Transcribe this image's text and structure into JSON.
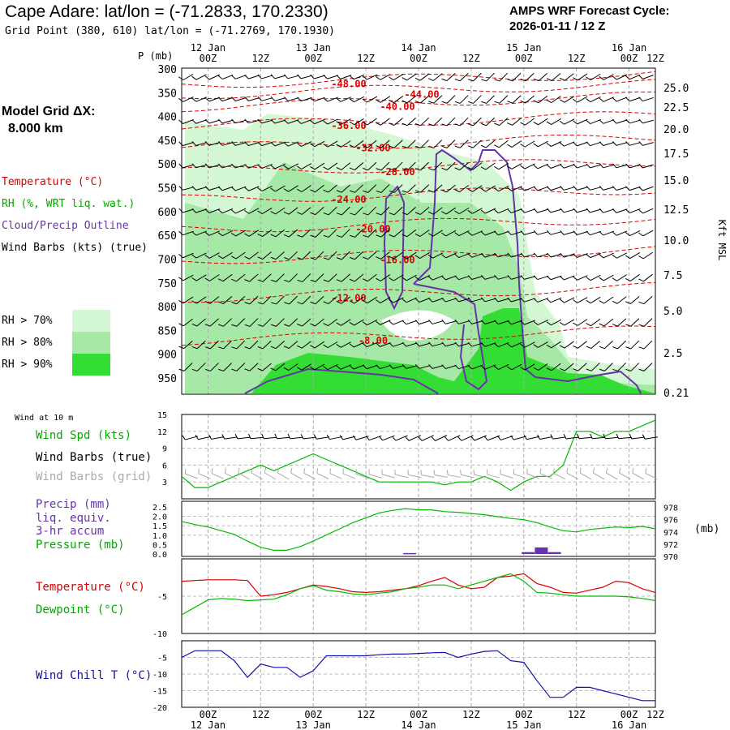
{
  "header": {
    "title": "Cape Adare:  lat/lon = (-71.2833, 170.2330)",
    "grid_point": "Grid Point (380, 610) lat/lon = (-71.2769, 170.1930)",
    "cycle_line1": "AMPS WRF Forecast Cycle:",
    "cycle_line2": "2026-01-11 / 12  Z",
    "model_grid_label": "Model Grid ΔX:",
    "model_grid_value": "8.000 km"
  },
  "legend": {
    "temperature": "Temperature (°C)",
    "rh": "RH (%, WRT liq. wat.)",
    "cloud": "Cloud/Precip Outline",
    "wind": "Wind Barbs (kts) (true)",
    "rh70": "RH > 70%",
    "rh80": "RH > 80%",
    "rh90": "RH > 90%",
    "p_mb": "P (mb)",
    "kft": "Kft MSL",
    "wind10m": "Wind at 10 m",
    "wind_spd": "Wind Spd (kts)",
    "wind_true": "Wind Barbs (true)",
    "wind_grid": "Wind Barbs (grid)",
    "precip1": "Precip (mm)",
    "precip2": "liq. equiv.",
    "precip3": "3-hr accum",
    "pressure": "Pressure (mb)",
    "pressure_unit": "(mb)",
    "temp": "Temperature (°C)",
    "dewpoint": "Dewpoint (°C)",
    "windchill": "Wind Chill T (°C)"
  },
  "colors": {
    "temp": "#dd0000",
    "rh": "#00bb00",
    "cloud": "#6633aa",
    "windchill": "#1111aa",
    "rh70": "#d4f7d4",
    "rh80": "#a6e8a6",
    "rh90": "#33dd33",
    "gridwind": "#aaaaaa"
  },
  "chart_data": {
    "type": "line",
    "x_hours": [
      0,
      3,
      6,
      9,
      12,
      15,
      18,
      21,
      24,
      27,
      30,
      33,
      36,
      39,
      42,
      45,
      48,
      51,
      54,
      57,
      60,
      63,
      66,
      69,
      72,
      75,
      78,
      81,
      84,
      87,
      90,
      93,
      96,
      99,
      102,
      105,
      108
    ],
    "time_ticks_top": [
      "00Z",
      "12Z",
      "00Z",
      "12Z",
      "00Z",
      "12Z",
      "00Z",
      "12Z",
      "00Z",
      "12Z"
    ],
    "date_labels": [
      "12 Jan",
      "13 Jan",
      "14 Jan",
      "15 Jan",
      "16 Jan"
    ],
    "cross_section": {
      "pressure_levels": [
        "300",
        "350",
        "400",
        "450",
        "500",
        "550",
        "600",
        "650",
        "700",
        "750",
        "800",
        "850",
        "900",
        "950"
      ],
      "height_kft": [
        "25.0",
        "22.5",
        "20.0",
        "17.5",
        "15.0",
        "12.5",
        "10.0",
        "7.5",
        "5.0",
        "2.5",
        "0.21"
      ],
      "temperature_contours": [
        {
          "label": "-48.00",
          "p": 330
        },
        {
          "label": "-44.00",
          "p": 352
        },
        {
          "label": "-40.00",
          "p": 378
        },
        {
          "label": "-36.00",
          "p": 418
        },
        {
          "label": "-32.00",
          "p": 465
        },
        {
          "label": "-28.00",
          "p": 515
        },
        {
          "label": "-24.00",
          "p": 573
        },
        {
          "label": "-20.00",
          "p": 635
        },
        {
          "label": "-16.00",
          "p": 700
        },
        {
          "label": "-12.00",
          "p": 780
        },
        {
          "label": "-8.00",
          "p": 870
        }
      ]
    },
    "wind_speed_10m_kts": [
      4,
      2,
      2,
      3,
      4,
      5,
      6,
      5,
      6,
      7,
      8,
      7,
      6,
      5,
      4,
      3,
      3,
      3,
      3,
      3,
      2.5,
      3,
      3,
      4,
      3,
      1.5,
      3,
      4,
      4,
      6,
      12,
      12,
      11,
      12,
      12,
      13,
      14
    ],
    "wind_speed_ylim": [
      0,
      15
    ],
    "wind_speed_ticks": [
      "15",
      "12",
      "9",
      "6",
      "3"
    ],
    "precip_ticks": [
      "2.5",
      "2.0",
      "1.5",
      "1.0",
      "0.5",
      "0.0"
    ],
    "pressure_ticks": [
      "978",
      "976",
      "974",
      "972",
      "970"
    ],
    "pressure_mb": [
      975.7,
      975.2,
      974.8,
      974.2,
      973.6,
      972.5,
      971.5,
      971.0,
      971.0,
      971.6,
      972.5,
      973.5,
      974.5,
      975.5,
      976.3,
      977.1,
      977.5,
      977.8,
      977.6,
      977.6,
      977.3,
      977.2,
      977.0,
      976.8,
      976.5,
      976.2,
      976.0,
      975.5,
      974.8,
      974.2,
      974.0,
      974.4,
      974.6,
      974.8,
      974.7,
      974.9,
      974.5
    ],
    "precip_mm": [
      {
        "hour": 52,
        "value": 0.05
      },
      {
        "hour": 79,
        "value": 0.1
      },
      {
        "hour": 82,
        "value": 0.35
      },
      {
        "hour": 85,
        "value": 0.1
      }
    ],
    "temperature_c": [
      -3,
      -2.9,
      -2.8,
      -2.8,
      -2.8,
      -2.9,
      -5,
      -4.8,
      -4.5,
      -4,
      -3.5,
      -3.7,
      -4,
      -4.4,
      -4.5,
      -4.4,
      -4.2,
      -4,
      -3.6,
      -3,
      -2.5,
      -3.5,
      -4,
      -3.8,
      -2.5,
      -2.3,
      -2,
      -3.3,
      -3.8,
      -4.5,
      -4.6,
      -4.2,
      -3.8,
      -3,
      -3.2,
      -4,
      -4.5
    ],
    "dewpoint_c": [
      -7.5,
      -6.5,
      -5.5,
      -5.3,
      -5.4,
      -5.6,
      -5.5,
      -5.4,
      -4.8,
      -4,
      -3.6,
      -4.2,
      -4.4,
      -4.7,
      -4.8,
      -4.6,
      -4.4,
      -4,
      -3.8,
      -3.5,
      -3.5,
      -4,
      -3.5,
      -3,
      -2.5,
      -2,
      -3,
      -4.5,
      -4.6,
      -4.8,
      -5,
      -5,
      -5,
      -5,
      -5.1,
      -5.3,
      -5.6
    ],
    "temp_ylim": [
      -10,
      0
    ],
    "temp_ticks": [
      "-5",
      "-10"
    ],
    "wind_chill_c": [
      -5,
      -3,
      -3,
      -3,
      -6,
      -11,
      -7,
      -8,
      -8,
      -11,
      -9,
      -4.5,
      -4.5,
      -4.5,
      -4.5,
      -4.2,
      -4,
      -4,
      -3.8,
      -3.6,
      -3.5,
      -5,
      -4,
      -3.2,
      -3,
      -6,
      -6.5,
      -12,
      -17,
      -17,
      -14,
      -14,
      -15,
      -16,
      -17,
      -18,
      -18
    ],
    "wind_chill_ylim": [
      -20,
      0
    ],
    "wind_chill_ticks": [
      "-5",
      "-10",
      "-15",
      "-20"
    ]
  }
}
